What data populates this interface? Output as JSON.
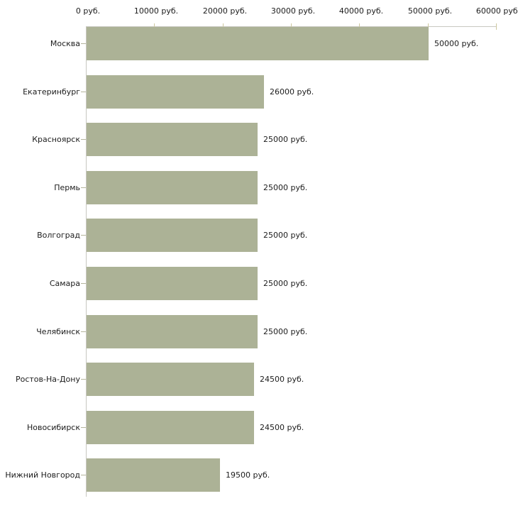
{
  "chart_data": {
    "type": "bar",
    "orientation": "horizontal",
    "title": "",
    "xlabel": "",
    "ylabel": "",
    "xlim": [
      0,
      60000
    ],
    "x_tick_interval": 10000,
    "x_tick_values": [
      0,
      10000,
      20000,
      30000,
      40000,
      50000,
      60000
    ],
    "x_tick_labels": [
      "0 руб.",
      "10000 руб.",
      "20000 руб.",
      "30000 руб.",
      "40000 руб.",
      "50000 руб.",
      "60000 руб."
    ],
    "categories": [
      "Москва",
      "Екатеринбург",
      "Красноярск",
      "Пермь",
      "Волгоград",
      "Самара",
      "Челябинск",
      "Ростов-На-Дону",
      "Новосибирск",
      "Нижний Новгород"
    ],
    "values": [
      50000,
      26000,
      25000,
      25000,
      25000,
      25000,
      25000,
      24500,
      24500,
      19500
    ],
    "value_labels": [
      "50000 руб.",
      "26000 руб.",
      "25000 руб.",
      "25000 руб.",
      "25000 руб.",
      "25000 руб.",
      "25000 руб.",
      "24500 руб.",
      "24500 руб.",
      "19500 руб."
    ],
    "grid": false,
    "legend": null,
    "colors": {
      "bar_fill": "#acb296",
      "axis_line": "#c8c8c0",
      "x_tick": "#cdc8a0",
      "y_tick": "#b4b49c",
      "text": "#1c1c1c",
      "background": "#ffffff"
    }
  }
}
